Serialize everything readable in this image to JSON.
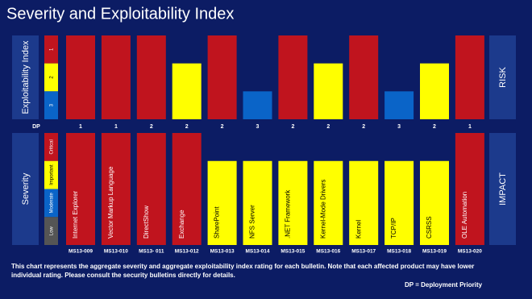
{
  "title": "Severity and Exploitability Index",
  "deployment_priority": {
    "label": "DP",
    "values": [
      1,
      1,
      2,
      2,
      2,
      3,
      2,
      2,
      2,
      3,
      2,
      1
    ]
  },
  "footnote": "This chart represents the aggregate severity and aggregate exploitability index rating for each bulletin. Note that each affected product may have lower individual rating. Please consult the security bulletins directly for details.",
  "dp_legend": "DP = Deployment Priority",
  "chart_data": [
    {
      "type": "bar",
      "y_label": "Exploitability Index",
      "side_label": "RISK",
      "values": [
        1,
        1,
        1,
        2,
        1,
        3,
        1,
        2,
        1,
        3,
        2,
        1
      ],
      "ylim": [
        4,
        1
      ],
      "yticks": [
        1,
        2,
        3
      ],
      "tick_colors": [
        "#c0141e",
        "#ffff00",
        "#0a64c8"
      ]
    },
    {
      "type": "bar",
      "y_label": "Severity",
      "side_label": "IMPACT",
      "categories": [
        "MS13-009",
        "MS13-010",
        "MS13- 011",
        "MS13-012",
        "MS13-013",
        "MS13-014",
        "MS13-015",
        "MS13-016",
        "MS13-017",
        "MS13-018",
        "MS13-019",
        "MS13-020"
      ],
      "bar_labels": [
        "Internet Explorer",
        "Vector Markup Language",
        "DirectShow",
        "Exchange",
        "SharePoint",
        "NFS Server",
        ".NET Framework",
        "Kernel-Mode Drivers",
        "Kernel",
        "TCP/IP",
        "CSRSS",
        "OLE Automation"
      ],
      "values": [
        4,
        4,
        4,
        4,
        3,
        3,
        3,
        3,
        3,
        3,
        3,
        4
      ],
      "ylim": [
        0,
        4
      ],
      "yticks": [
        {
          "value": 4,
          "label": "Critical"
        },
        {
          "value": 3,
          "label": "Important"
        },
        {
          "value": 2,
          "label": "Moderate"
        },
        {
          "value": 1,
          "label": "Low"
        }
      ],
      "tick_colors": [
        "#c0141e",
        "#ffff00",
        "#0a64c8",
        "#555555"
      ]
    }
  ]
}
